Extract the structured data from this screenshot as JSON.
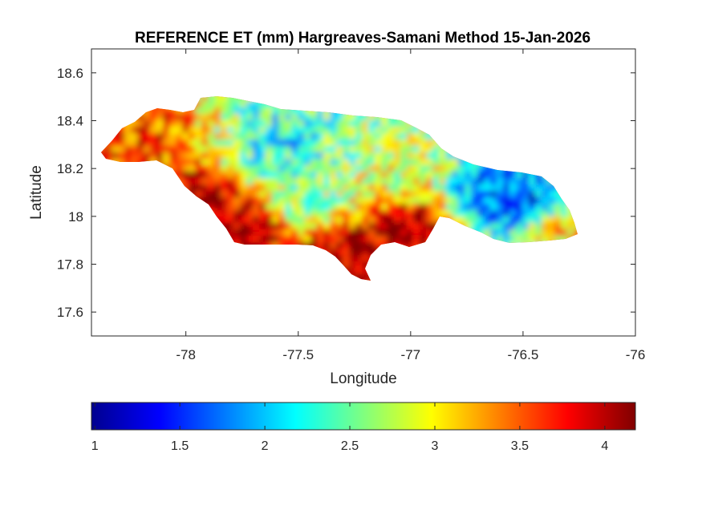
{
  "chart_data": {
    "type": "heatmap",
    "title": "REFERENCE ET (mm) Hargreaves-Samani Method  15-Jan-2026",
    "xlabel": "Longitude",
    "ylabel": "Latitude",
    "xlim": [
      -78.42,
      -76.0
    ],
    "ylim": [
      17.5,
      18.7
    ],
    "x_ticks": [
      -78,
      -77.5,
      -77,
      -76.5,
      -76
    ],
    "x_tick_labels": [
      "-78",
      "-77.5",
      "-77",
      "-76.5",
      "-76"
    ],
    "y_ticks": [
      17.6,
      17.8,
      18,
      18.2,
      18.4,
      18.6
    ],
    "y_tick_labels": [
      "17.6",
      "17.8",
      "18",
      "18.2",
      "18.4",
      "18.6"
    ],
    "colorbar": {
      "colormap": "jet",
      "location": "below",
      "range": [
        0.98,
        4.18
      ],
      "ticks": [
        1,
        1.5,
        2,
        2.5,
        3,
        3.5,
        4
      ],
      "tick_labels": [
        "1",
        "1.5",
        "2",
        "2.5",
        "3",
        "3.5",
        "4"
      ]
    },
    "grid": false,
    "region": "Jamaica",
    "value_zones": [
      {
        "lon": -78.2,
        "lat": 18.3,
        "value": 3.6
      },
      {
        "lon": -77.95,
        "lat": 18.05,
        "value": 4.1
      },
      {
        "lon": -77.75,
        "lat": 17.95,
        "value": 4.15
      },
      {
        "lon": -77.6,
        "lat": 18.25,
        "value": 2.4
      },
      {
        "lon": -77.5,
        "lat": 18.3,
        "value": 2.1
      },
      {
        "lon": -77.45,
        "lat": 18.05,
        "value": 2.6
      },
      {
        "lon": -77.25,
        "lat": 17.85,
        "value": 4.1
      },
      {
        "lon": -77.3,
        "lat": 18.3,
        "value": 2.6
      },
      {
        "lon": -77.05,
        "lat": 18.15,
        "value": 2.9
      },
      {
        "lon": -77.0,
        "lat": 17.95,
        "value": 4.15
      },
      {
        "lon": -76.6,
        "lat": 18.08,
        "value": 1.6
      },
      {
        "lon": -76.5,
        "lat": 18.05,
        "value": 1.5
      },
      {
        "lon": -76.4,
        "lat": 18.0,
        "value": 2.3
      },
      {
        "lon": -76.35,
        "lat": 17.95,
        "value": 3.3
      }
    ]
  }
}
